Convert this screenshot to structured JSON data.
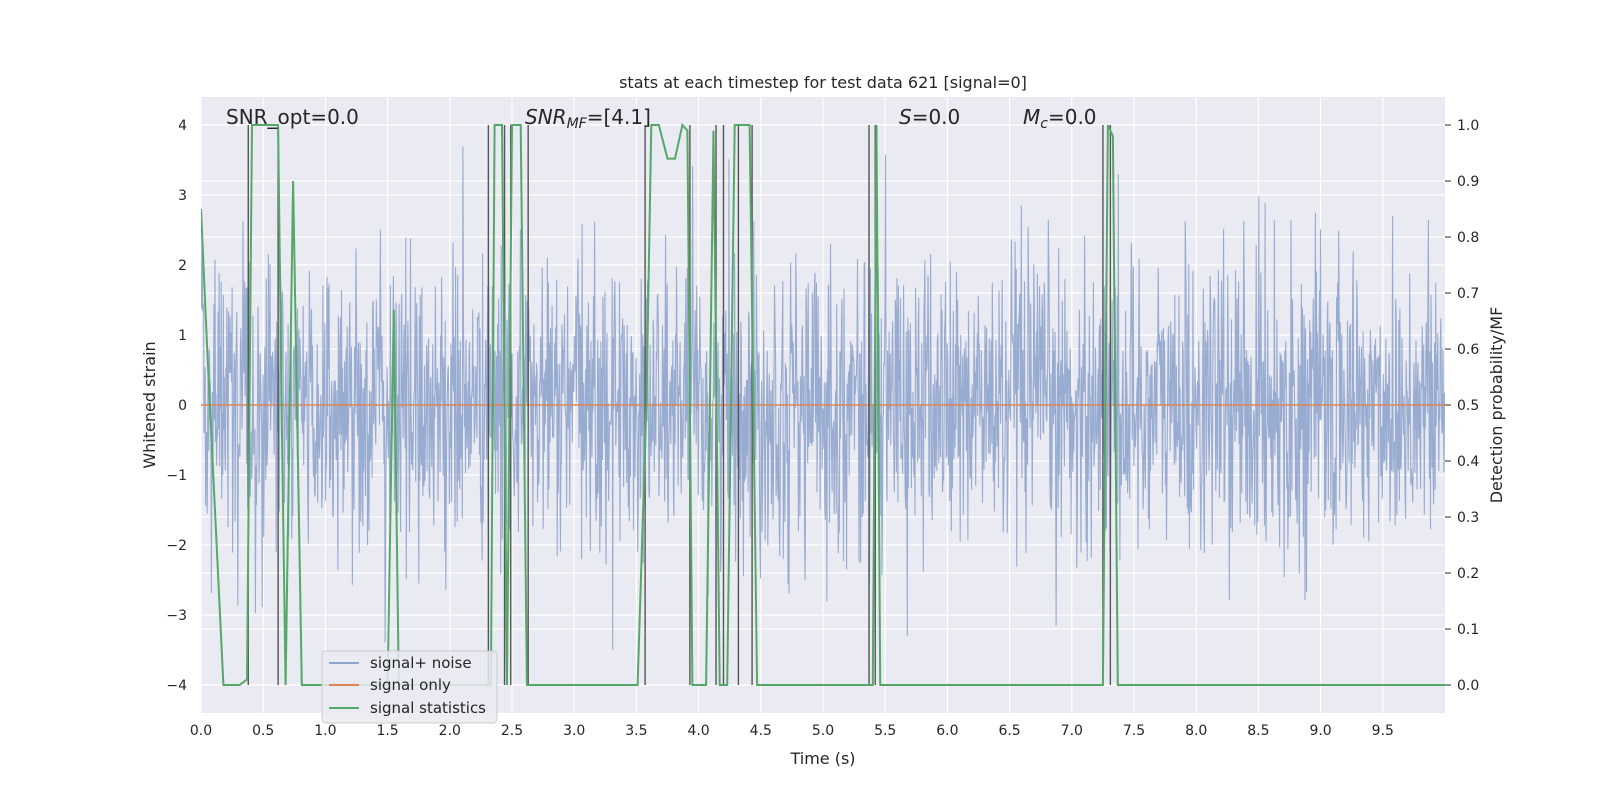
{
  "chart_data": {
    "type": "line",
    "title": "stats at each timestep for test data 621 [signal=0]",
    "xlabel": "Time (s)",
    "ylabel": "Whitened strain",
    "y2label": "Detection probability/MF",
    "xlim": [
      0,
      10
    ],
    "ylim": [
      -4.4,
      4.4
    ],
    "y2lim": [
      -0.05,
      1.05
    ],
    "xticks": [
      "0.0",
      "0.5",
      "1.0",
      "1.5",
      "2.0",
      "2.5",
      "3.0",
      "3.5",
      "4.0",
      "4.5",
      "5.0",
      "5.5",
      "6.0",
      "6.5",
      "7.0",
      "7.5",
      "8.0",
      "8.5",
      "9.0",
      "9.5"
    ],
    "yticks": [
      "4",
      "3",
      "2",
      "1",
      "0",
      "−1",
      "−2",
      "−3",
      "−4"
    ],
    "y2ticks": [
      "1.0",
      "0.9",
      "0.8",
      "0.7",
      "0.6",
      "0.5",
      "0.4",
      "0.3",
      "0.2",
      "0.1",
      "0.0"
    ],
    "grid": true,
    "legend_position": "lower-left",
    "colors": {
      "signal_noise": "#8fa4cc",
      "signal_only": "#dd8452",
      "signal_statistics": "#55a868",
      "vlines": "#555555",
      "background": "#eaeaf2",
      "grid": "#ffffff"
    },
    "annotations": {
      "snr_opt": "SNR_opt=0.0",
      "snr_mf_name": "SNR",
      "snr_mf_sub": "MF",
      "snr_mf_value": "=[4.1]",
      "s_name": "S",
      "s_value": "=0.0",
      "mc_name": "M",
      "mc_sub": "c",
      "mc_value": "=0.0"
    },
    "series": [
      {
        "name": "signal+ noise",
        "noise_sigma": 1.0,
        "y_range": [
          -4.1,
          4.0
        ]
      },
      {
        "name": "signal only",
        "values_constant": 0.0
      },
      {
        "name": "signal statistics",
        "x": [
          0.0,
          0.05,
          0.18,
          0.31,
          0.37,
          0.41,
          0.43,
          0.62,
          0.65,
          0.68,
          0.74,
          0.81,
          1.5,
          1.55,
          1.59,
          2.33,
          2.36,
          2.42,
          2.46,
          2.5,
          2.57,
          2.62,
          2.67,
          3.51,
          3.58,
          3.62,
          3.68,
          3.75,
          3.81,
          3.87,
          3.91,
          3.95,
          4.0,
          4.06,
          4.12,
          4.17,
          4.23,
          4.29,
          4.35,
          4.41,
          4.47,
          4.53,
          5.37,
          5.4,
          5.43,
          5.46,
          5.5,
          7.25,
          7.29,
          7.33,
          7.37,
          10.0
        ],
        "values": [
          0.85,
          0.6,
          0.0,
          0.0,
          0.01,
          1.0,
          1.0,
          1.0,
          0.46,
          0.0,
          0.9,
          0.0,
          0.0,
          0.67,
          0.0,
          0.0,
          1.0,
          1.0,
          0.0,
          1.0,
          1.0,
          0.0,
          0.0,
          0.0,
          0.5,
          1.0,
          1.0,
          0.94,
          0.94,
          1.0,
          0.99,
          0.0,
          0.0,
          0.0,
          0.99,
          0.0,
          0.0,
          1.0,
          1.0,
          1.0,
          0.0,
          0.0,
          0.0,
          0.0,
          1.0,
          0.0,
          0.0,
          0.0,
          1.0,
          0.98,
          0.0,
          0.0
        ]
      }
    ],
    "vlines_x": [
      0.38,
      0.62,
      2.31,
      2.44,
      2.49,
      2.63,
      3.57,
      3.93,
      4.14,
      4.2,
      4.32,
      4.43,
      5.37,
      5.42,
      7.25,
      7.31
    ],
    "legend": [
      "signal+ noise",
      "signal only",
      "signal statistics"
    ]
  }
}
